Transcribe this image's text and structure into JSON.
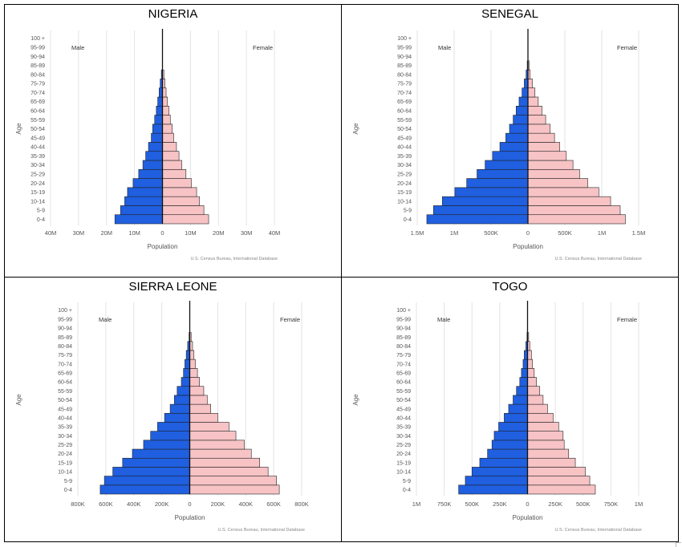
{
  "chart_data": [
    {
      "type": "bar",
      "orientation": "horizontal",
      "title": "NIGERIA",
      "ylabel": "Age",
      "xlabel": "Population",
      "male_label": "Male",
      "female_label": "Female",
      "source": "U.S. Census Bureau, International Database",
      "xlim": [
        -40000000,
        40000000
      ],
      "x_ticks": [
        -40000000,
        -30000000,
        -20000000,
        -10000000,
        0,
        10000000,
        20000000,
        30000000,
        40000000
      ],
      "x_tick_labels": [
        "40M",
        "30M",
        "20M",
        "10M",
        "0",
        "10M",
        "20M",
        "30M",
        "40M"
      ],
      "categories": [
        "0-4",
        "5-9",
        "10-14",
        "15-19",
        "20-24",
        "25-29",
        "30-34",
        "35-39",
        "40-44",
        "45-49",
        "50-54",
        "55-59",
        "60-64",
        "65-69",
        "70-74",
        "75-79",
        "80-84",
        "85-89",
        "90-94",
        "95-99",
        "100 +"
      ],
      "series": [
        {
          "name": "Male",
          "color": "#1f5fe0",
          "values": [
            17000000,
            15000000,
            13500000,
            12500000,
            10500000,
            8500000,
            7000000,
            6000000,
            5000000,
            4000000,
            3500000,
            2800000,
            2200000,
            1700000,
            1200000,
            800000,
            400000,
            0,
            0,
            0,
            0
          ]
        },
        {
          "name": "Female",
          "color": "#f7c3c5",
          "values": [
            16500000,
            14800000,
            13200000,
            12200000,
            10300000,
            8400000,
            6900000,
            5900000,
            5000000,
            4000000,
            3500000,
            2800000,
            2300000,
            1800000,
            1300000,
            900000,
            500000,
            0,
            0,
            0,
            0
          ]
        }
      ]
    },
    {
      "type": "bar",
      "orientation": "horizontal",
      "title": "SENEGAL",
      "ylabel": "Age",
      "xlabel": "Population",
      "male_label": "Male",
      "female_label": "Female",
      "source": "U.S. Census Bureau, International Database",
      "xlim": [
        -1500000,
        1500000
      ],
      "x_ticks": [
        -1500000,
        -1000000,
        -500000,
        0,
        500000,
        1000000,
        1500000
      ],
      "x_tick_labels": [
        "1.5M",
        "1M",
        "500K",
        "0",
        "500K",
        "1M",
        "1.5M"
      ],
      "categories": [
        "0-4",
        "5-9",
        "10-14",
        "15-19",
        "20-24",
        "25-29",
        "30-34",
        "35-39",
        "40-44",
        "45-49",
        "50-54",
        "55-59",
        "60-64",
        "65-69",
        "70-74",
        "75-79",
        "80-84",
        "85-89",
        "90-94",
        "95-99",
        "100 +"
      ],
      "series": [
        {
          "name": "Male",
          "color": "#1f5fe0",
          "values": [
            1370000,
            1280000,
            1160000,
            990000,
            830000,
            690000,
            580000,
            480000,
            380000,
            300000,
            250000,
            200000,
            160000,
            120000,
            80000,
            50000,
            25000,
            10000,
            0,
            0,
            0
          ]
        },
        {
          "name": "Female",
          "color": "#f7c3c5",
          "values": [
            1320000,
            1250000,
            1120000,
            960000,
            810000,
            700000,
            610000,
            520000,
            430000,
            360000,
            300000,
            240000,
            190000,
            140000,
            95000,
            60000,
            30000,
            15000,
            0,
            0,
            0
          ]
        }
      ]
    },
    {
      "type": "bar",
      "orientation": "horizontal",
      "title": "SIERRA LEONE",
      "ylabel": "Age",
      "xlabel": "Population",
      "male_label": "Male",
      "female_label": "Female",
      "source": "U.S. Census Bureau, International Database",
      "xlim": [
        -800000,
        800000
      ],
      "x_ticks": [
        -800000,
        -600000,
        -400000,
        -200000,
        0,
        200000,
        400000,
        600000,
        800000
      ],
      "x_tick_labels": [
        "800K",
        "600K",
        "400K",
        "200K",
        "0",
        "200K",
        "400K",
        "600K",
        "800K"
      ],
      "categories": [
        "0-4",
        "5-9",
        "10-14",
        "15-19",
        "20-24",
        "25-29",
        "30-34",
        "35-39",
        "40-44",
        "45-49",
        "50-54",
        "55-59",
        "60-64",
        "65-69",
        "70-74",
        "75-79",
        "80-84",
        "85-89",
        "90-94",
        "95-99",
        "100 +"
      ],
      "series": [
        {
          "name": "Male",
          "color": "#1f5fe0",
          "values": [
            640000,
            610000,
            550000,
            480000,
            410000,
            330000,
            280000,
            230000,
            180000,
            140000,
            110000,
            90000,
            60000,
            45000,
            35000,
            25000,
            15000,
            5000,
            0,
            0,
            0
          ]
        },
        {
          "name": "Female",
          "color": "#f7c3c5",
          "values": [
            640000,
            620000,
            560000,
            500000,
            440000,
            390000,
            330000,
            280000,
            200000,
            150000,
            125000,
            100000,
            70000,
            55000,
            40000,
            30000,
            20000,
            10000,
            0,
            0,
            0
          ]
        }
      ]
    },
    {
      "type": "bar",
      "orientation": "horizontal",
      "title": "TOGO",
      "ylabel": "Age",
      "xlabel": "Population",
      "male_label": "Male",
      "female_label": "Female",
      "source": "U.S. Census Bureau, International Database",
      "xlim": [
        -1000000,
        1000000
      ],
      "x_ticks": [
        -1000000,
        -750000,
        -500000,
        -250000,
        0,
        250000,
        500000,
        750000,
        1000000
      ],
      "x_tick_labels": [
        "1M",
        "750K",
        "500K",
        "250K",
        "0",
        "250K",
        "500K",
        "750K",
        "1M"
      ],
      "categories": [
        "0-4",
        "5-9",
        "10-14",
        "15-19",
        "20-24",
        "25-29",
        "30-34",
        "35-39",
        "40-44",
        "45-49",
        "50-54",
        "55-59",
        "60-64",
        "65-69",
        "70-74",
        "75-79",
        "80-84",
        "85-89",
        "90-94",
        "95-99",
        "100 +"
      ],
      "series": [
        {
          "name": "Male",
          "color": "#1f5fe0",
          "values": [
            620000,
            560000,
            500000,
            430000,
            360000,
            320000,
            300000,
            260000,
            210000,
            170000,
            130000,
            100000,
            70000,
            55000,
            40000,
            30000,
            15000,
            5000,
            0,
            0,
            0
          ]
        },
        {
          "name": "Female",
          "color": "#f7c3c5",
          "values": [
            610000,
            560000,
            520000,
            430000,
            370000,
            330000,
            320000,
            280000,
            230000,
            180000,
            140000,
            110000,
            80000,
            60000,
            45000,
            35000,
            20000,
            10000,
            0,
            0,
            0
          ]
        }
      ]
    }
  ]
}
